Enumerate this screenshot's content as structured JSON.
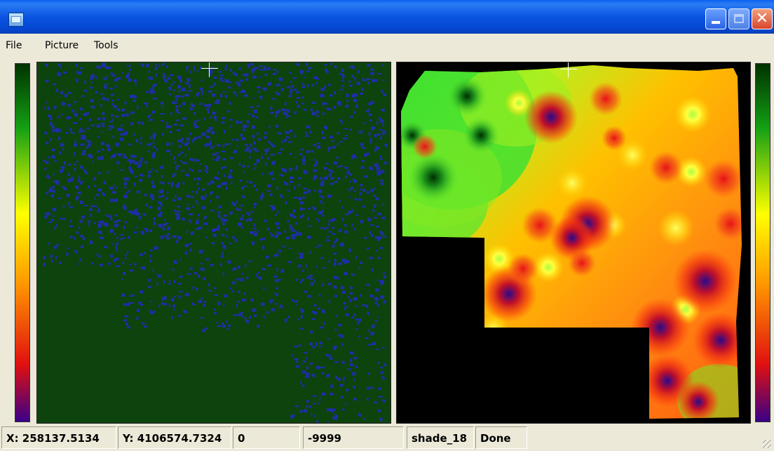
{
  "window": {
    "title": "",
    "buttons": {
      "minimize": "",
      "maximize": "",
      "close": "✕"
    }
  },
  "menu": {
    "items": [
      "File",
      "Picture",
      "Tools"
    ]
  },
  "colorbar": {
    "stops": [
      "#003200",
      "#14a014",
      "#ffff00",
      "#ff9400",
      "#e01010",
      "#3a0088"
    ]
  },
  "panels": {
    "left": {
      "background": "#0d430d",
      "dot_color": "#1e2ea8"
    },
    "right": {
      "background": "#000000"
    }
  },
  "status": {
    "x": "X: 258137.5134",
    "y": "Y: 4106574.7324",
    "value": "0",
    "nodata": "-9999",
    "layer": "shade_18",
    "state": "Done"
  }
}
